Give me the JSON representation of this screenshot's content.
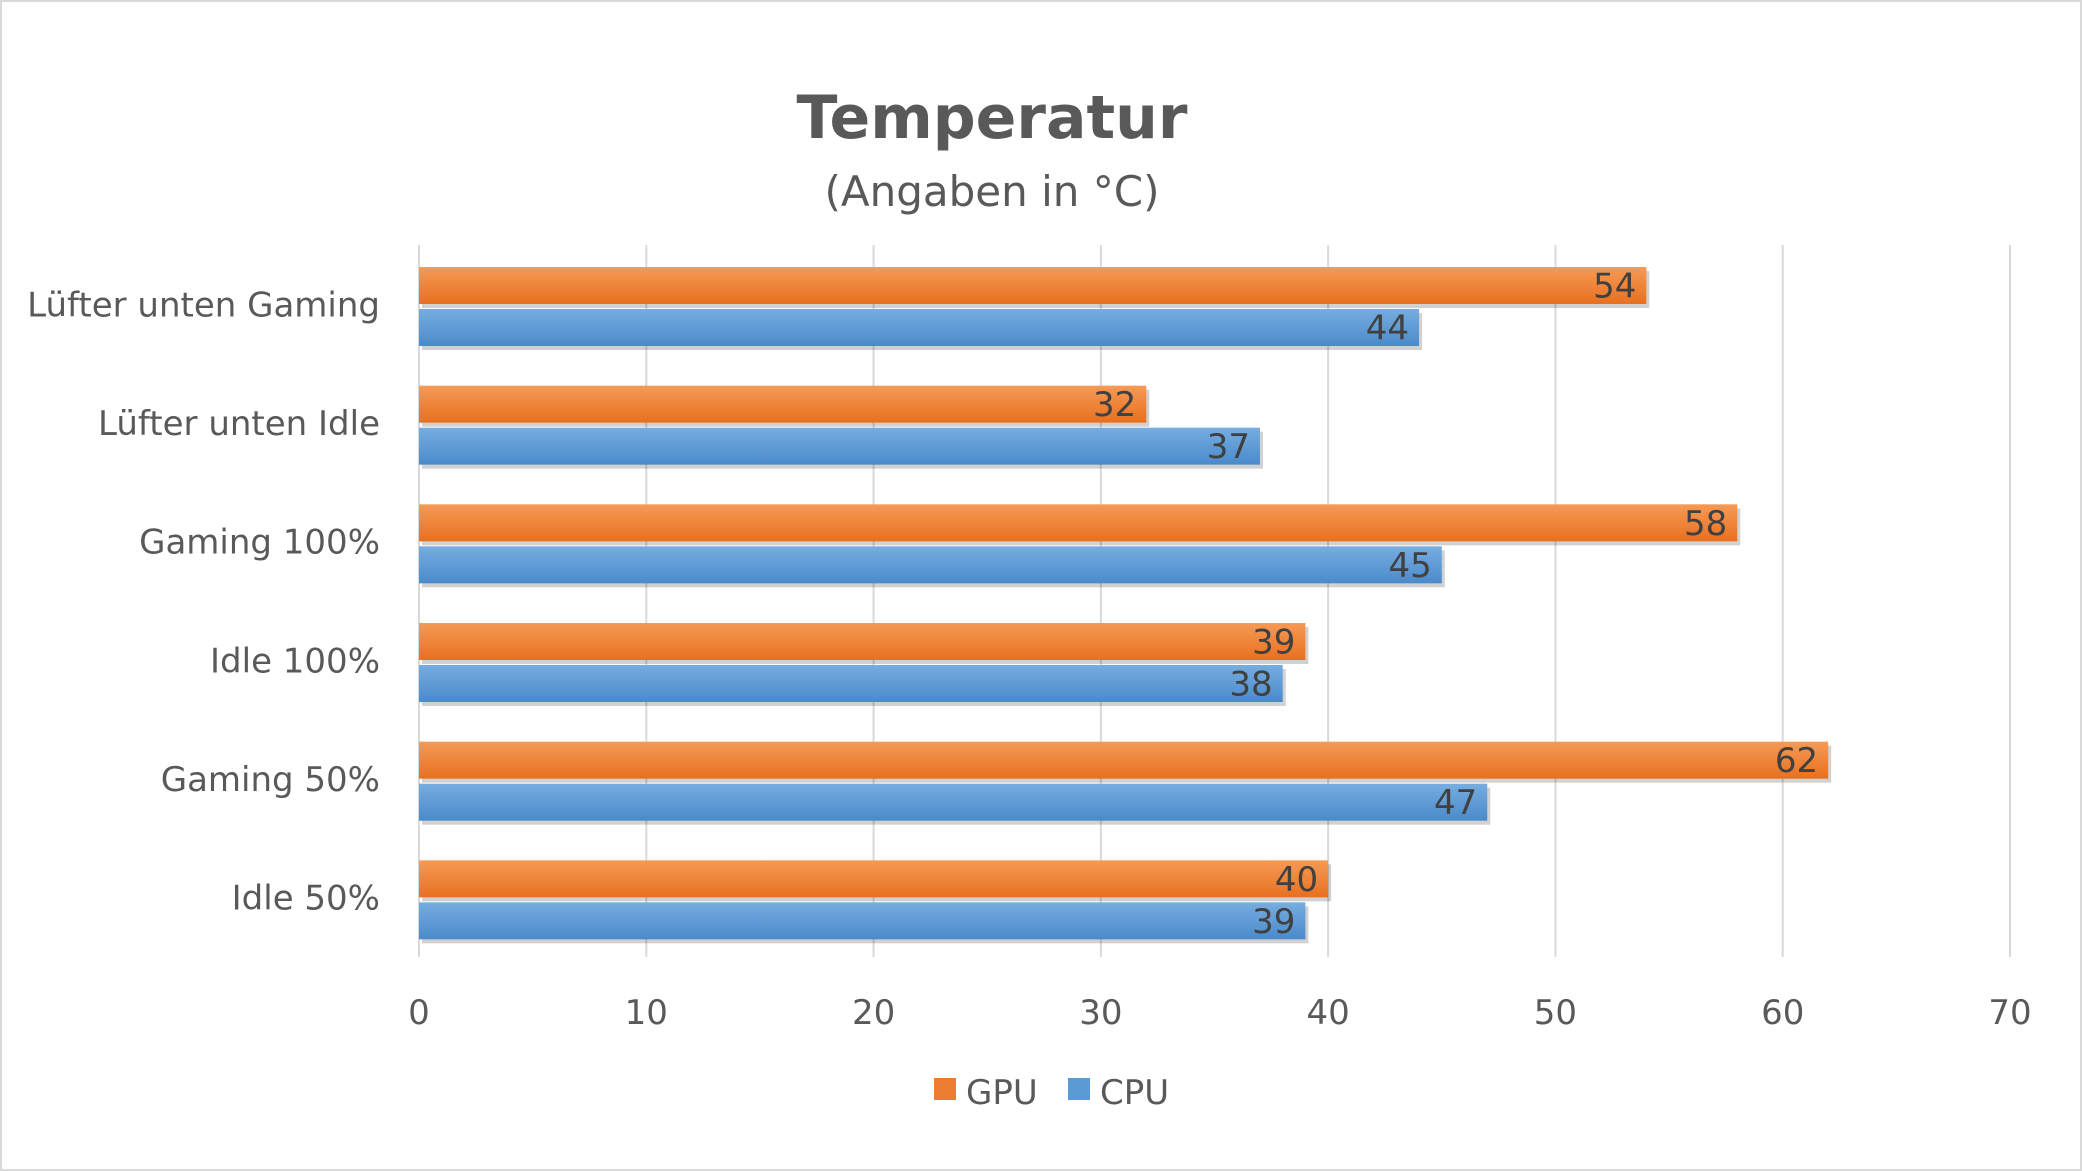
{
  "chart_data": {
    "type": "bar",
    "orientation": "horizontal",
    "title": "Temperatur",
    "subtitle": "(Angaben in °C)",
    "categories": [
      "Lüfter unten Gaming",
      "Lüfter unten Idle",
      "Gaming 100%",
      "Idle 100%",
      "Gaming 50%",
      "Idle 50%"
    ],
    "series": [
      {
        "name": "GPU",
        "color": "#ED7D31",
        "values": [
          54,
          32,
          58,
          39,
          62,
          40
        ]
      },
      {
        "name": "CPU",
        "color": "#5B9BD5",
        "values": [
          44,
          37,
          45,
          38,
          47,
          39
        ]
      }
    ],
    "xlim": [
      0,
      70
    ],
    "xticks": [
      0,
      10,
      20,
      30,
      40,
      50,
      60,
      70
    ],
    "xlabel": "",
    "ylabel": "",
    "grid": true,
    "data_labels": true,
    "legend": {
      "position": "bottom",
      "entries": [
        "GPU",
        "CPU"
      ]
    }
  }
}
